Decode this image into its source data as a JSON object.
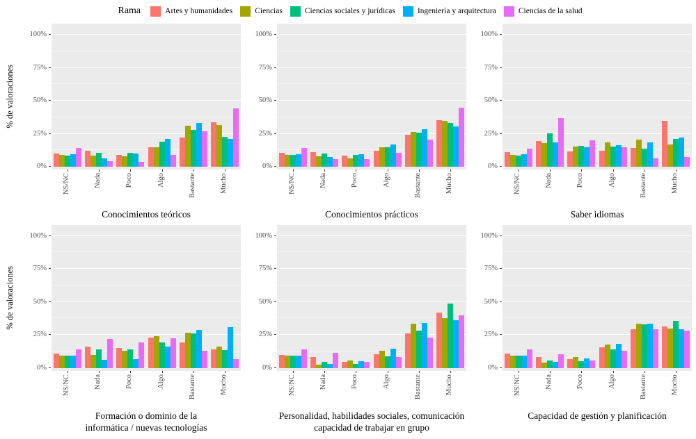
{
  "legend": {
    "title": "Rama",
    "position": "top",
    "items": [
      {
        "label": "Artes y humanidades",
        "color": "#F8766D"
      },
      {
        "label": "Ciencias",
        "color": "#A3A500"
      },
      {
        "label": "Ciencias sociales y jurídicas",
        "color": "#00BF7D"
      },
      {
        "label": "Ingeniería y arquitectura",
        "color": "#00B0F6"
      },
      {
        "label": "Ciencias de la salud",
        "color": "#E76BF3"
      }
    ]
  },
  "axes": {
    "y_title": "% de valoraciones",
    "y_ticks": [
      {
        "value": 0,
        "label": "0%"
      },
      {
        "value": 25,
        "label": "25%"
      },
      {
        "value": 50,
        "label": "50%"
      },
      {
        "value": 75,
        "label": "75%"
      },
      {
        "value": 100,
        "label": "100%"
      }
    ],
    "y_minor": [
      12.5,
      37.5,
      62.5,
      87.5
    ],
    "categories": [
      "NS/NC",
      "Nada",
      "Poco",
      "Algo",
      "Bastante",
      "Mucho"
    ],
    "grid": "on",
    "panel_background": "#EBEBEB"
  },
  "chart_data": [
    {
      "type": "bar",
      "title": "Conocimientos teóricos",
      "title_lines": [
        "Conocimientos teóricos"
      ],
      "xlabel": "",
      "ylabel": "% de valoraciones",
      "ylim": [
        0,
        100
      ],
      "categories": [
        "NS/NC",
        "Nada",
        "Poco",
        "Algo",
        "Bastante",
        "Mucho"
      ],
      "series": [
        {
          "name": "Artes y humanidades",
          "values": [
            10,
            12,
            9,
            14.5,
            22,
            33.5
          ]
        },
        {
          "name": "Ciencias",
          "values": [
            9,
            8.5,
            8,
            14.5,
            31,
            31.5
          ]
        },
        {
          "name": "Ciencias sociales y jurídicas",
          "values": [
            8.5,
            10.5,
            10.5,
            19,
            28,
            22.5
          ]
        },
        {
          "name": "Ingeniería y arquitectura",
          "values": [
            9.5,
            6.5,
            10,
            21,
            33,
            21
          ]
        },
        {
          "name": "Ciencias de la salud",
          "values": [
            14,
            4,
            3.5,
            9,
            27,
            44
          ]
        }
      ]
    },
    {
      "type": "bar",
      "title": "Conocimientos prácticos",
      "title_lines": [
        "Conocimientos prácticos"
      ],
      "xlabel": "",
      "ylabel": "% de valoraciones",
      "ylim": [
        0,
        100
      ],
      "categories": [
        "NS/NC",
        "Nada",
        "Poco",
        "Algo",
        "Bastante",
        "Mucho"
      ],
      "series": [
        {
          "name": "Artes y humanidades",
          "values": [
            10.5,
            11,
            8.5,
            12,
            24,
            35.5
          ]
        },
        {
          "name": "Ciencias",
          "values": [
            9,
            8,
            6.5,
            15,
            26.5,
            34.5
          ]
        },
        {
          "name": "Ciencias sociales y jurídicas",
          "values": [
            9,
            10,
            9,
            14.5,
            26,
            33
          ]
        },
        {
          "name": "Ingeniería y arquitectura",
          "values": [
            9.5,
            7.5,
            9.5,
            17,
            28.5,
            30.5
          ]
        },
        {
          "name": "Ciencias de la salud",
          "values": [
            14,
            6,
            6,
            10.5,
            20.5,
            45
          ]
        }
      ]
    },
    {
      "type": "bar",
      "title": "Saber idiomas",
      "title_lines": [
        "Saber idiomas"
      ],
      "xlabel": "",
      "ylabel": "% de valoraciones",
      "ylim": [
        0,
        100
      ],
      "categories": [
        "NS/NC",
        "Nada",
        "Poco",
        "Algo",
        "Bastante",
        "Mucho"
      ],
      "series": [
        {
          "name": "Artes y humanidades",
          "values": [
            11,
            19.5,
            11.5,
            12,
            14,
            34.5
          ]
        },
        {
          "name": "Ciencias",
          "values": [
            9,
            18,
            15.5,
            18.5,
            20.5,
            17
          ]
        },
        {
          "name": "Ciencias sociales y jurídicas",
          "values": [
            8.5,
            25.5,
            16,
            15.5,
            13.5,
            21
          ]
        },
        {
          "name": "Ingeniería y arquitectura",
          "values": [
            9.5,
            18.5,
            15,
            16.5,
            18.5,
            22
          ]
        },
        {
          "name": "Ciencias de la salud",
          "values": [
            13.5,
            37,
            20,
            15,
            6.5,
            7.5
          ]
        }
      ]
    },
    {
      "type": "bar",
      "title": "Formación o dominio de la informática / nuevas tecnologías",
      "title_lines": [
        "Formación o dominio de la",
        "informática / nuevas tecnologías"
      ],
      "xlabel": "",
      "ylabel": "% de valoraciones",
      "ylim": [
        0,
        100
      ],
      "categories": [
        "NS/NC",
        "Nada",
        "Poco",
        "Algo",
        "Bastante",
        "Mucho"
      ],
      "series": [
        {
          "name": "Artes y humanidades",
          "values": [
            11,
            16,
            15,
            23,
            19,
            14
          ]
        },
        {
          "name": "Ciencias",
          "values": [
            9.5,
            10,
            13,
            24,
            26.5,
            16
          ]
        },
        {
          "name": "Ciencias sociales y jurídicas",
          "values": [
            9,
            14,
            14,
            19.5,
            26,
            13.5
          ]
        },
        {
          "name": "Ingeniería y arquitectura",
          "values": [
            9.5,
            6,
            6.5,
            16,
            28.5,
            31
          ]
        },
        {
          "name": "Ciencias de la salud",
          "values": [
            14,
            22,
            19.5,
            22.5,
            13,
            6.5
          ]
        }
      ]
    },
    {
      "type": "bar",
      "title": "Personalidad, habilidades sociales, comunicación capacidad de trabajar en grupo",
      "title_lines": [
        "Personalidad, habilidades sociales, comunicación",
        "capacidad de trabajar en grupo"
      ],
      "xlabel": "",
      "ylabel": "% de valoraciones",
      "ylim": [
        0,
        100
      ],
      "categories": [
        "NS/NC",
        "Nada",
        "Poco",
        "Algo",
        "Bastante",
        "Mucho"
      ],
      "series": [
        {
          "name": "Artes y humanidades",
          "values": [
            10,
            8,
            4.5,
            10.5,
            26,
            42
          ]
        },
        {
          "name": "Ciencias",
          "values": [
            9,
            2.5,
            5.5,
            13,
            33.5,
            37.5
          ]
        },
        {
          "name": "Ciencias sociales y jurídicas",
          "values": [
            9,
            4.5,
            3,
            8.5,
            28,
            48.5
          ]
        },
        {
          "name": "Ingeniería y arquitectura",
          "values": [
            9,
            3,
            5,
            14.5,
            34,
            36
          ]
        },
        {
          "name": "Ciencias de la salud",
          "values": [
            14,
            11.5,
            4.5,
            8,
            23,
            40
          ]
        }
      ]
    },
    {
      "type": "bar",
      "title": "Capacidad de gestión y planificación",
      "title_lines": [
        "Capacidad de gestión y planificación"
      ],
      "xlabel": "",
      "ylabel": "% de valoraciones",
      "ylim": [
        0,
        100
      ],
      "categories": [
        "NS/NC",
        "Nada",
        "Poco",
        "Algo",
        "Bastante",
        "Mucho"
      ],
      "series": [
        {
          "name": "Artes y humanidades",
          "values": [
            11,
            8,
            6.5,
            15.5,
            29,
            31.5
          ]
        },
        {
          "name": "Ciencias",
          "values": [
            9,
            4,
            8,
            17.5,
            33.5,
            30
          ]
        },
        {
          "name": "Ciencias sociales y jurídicas",
          "values": [
            9,
            5.5,
            5,
            14,
            33,
            35.5
          ]
        },
        {
          "name": "Ingeniería y arquitectura",
          "values": [
            9.5,
            4.5,
            7,
            18,
            33.5,
            29.5
          ]
        },
        {
          "name": "Ciencias de la salud",
          "values": [
            14,
            10.5,
            5.5,
            13,
            29,
            28
          ]
        }
      ]
    }
  ]
}
